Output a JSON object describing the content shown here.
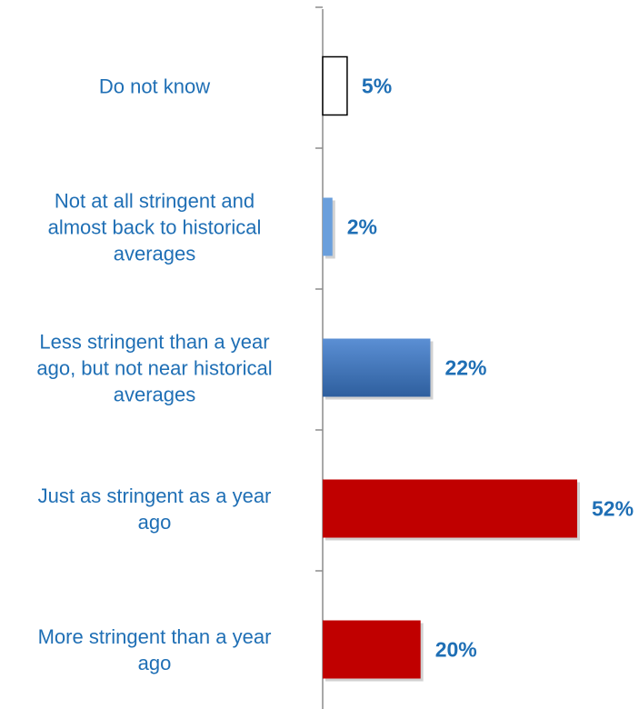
{
  "chart_data": {
    "type": "bar",
    "orientation": "horizontal",
    "title": "",
    "xlabel": "",
    "ylabel": "",
    "grid": false,
    "legend": "none",
    "xlim": [
      0,
      55
    ],
    "categories": [
      "Do not know",
      "Not at all stringent and almost back to historical averages",
      "Less stringent than a year ago, but not near historical averages",
      "Just as stringent as a year ago",
      "More stringent than a year ago"
    ],
    "label_lines": [
      [
        "Do not know"
      ],
      [
        "Not at all stringent and",
        "almost back to historical",
        "averages"
      ],
      [
        "Less stringent than a year",
        "ago, but not near historical",
        "averages"
      ],
      [
        "Just as stringent as a year",
        "ago"
      ],
      [
        "More stringent than a year",
        "ago"
      ]
    ],
    "values": [
      5,
      2,
      22,
      52,
      20
    ],
    "value_labels": [
      "5%",
      "2%",
      "22%",
      "52%",
      "20%"
    ],
    "bar_styles": [
      "outline",
      "light-blue",
      "blue-gradient",
      "red",
      "red"
    ],
    "colors": {
      "label_text": "#1f6fb5",
      "value_text": "#1f6fb5",
      "axis": "#8c8c8c",
      "outline_stroke": "#000000",
      "light_blue": "#6a9fdc",
      "blue_top": "#5b8fd4",
      "blue_bottom": "#2e5f9e",
      "red": "#c00000"
    }
  }
}
